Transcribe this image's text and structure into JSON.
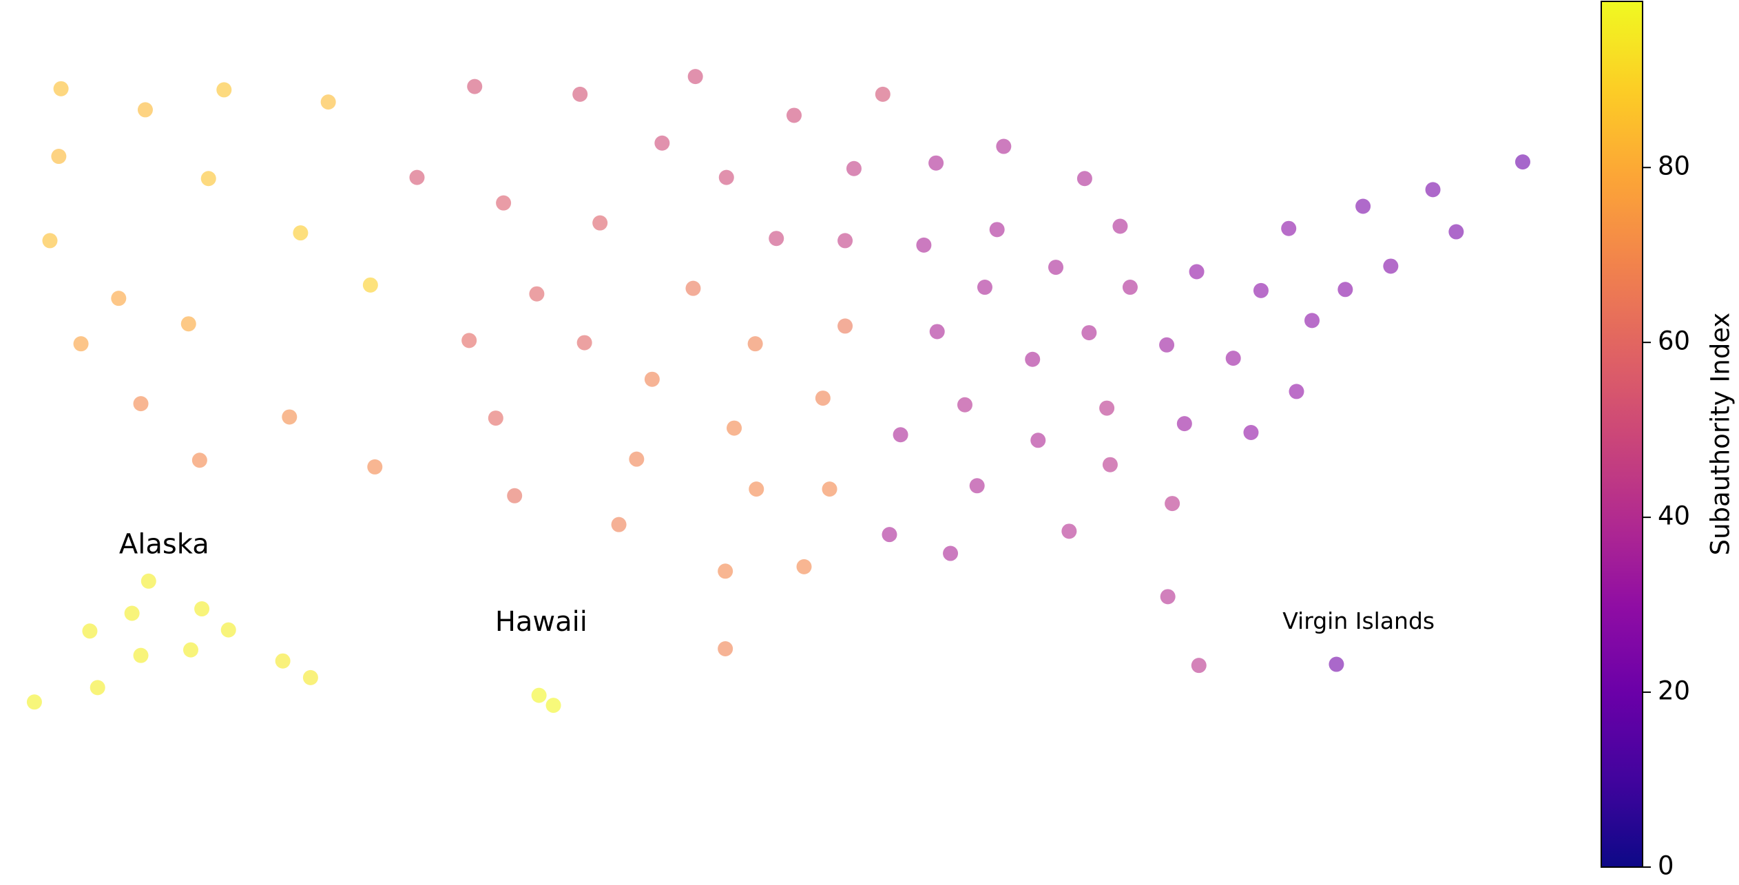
{
  "chart_data": {
    "type": "scatter",
    "colormap": "plasma",
    "colorbar_label": "Subauthority Index",
    "clim": [
      0,
      99
    ],
    "cticks": [
      0,
      20,
      40,
      60,
      80
    ],
    "xlim": [
      0,
      1568
    ],
    "ylim": [
      798,
      0
    ],
    "annotations": [
      {
        "text": "Alaska",
        "x": 148,
        "y": 492
      },
      {
        "text": "Hawaii",
        "x": 488,
        "y": 562
      },
      {
        "text": "Virgin Islands",
        "x": 1225,
        "y": 561
      }
    ],
    "x": [
      55,
      131,
      202,
      296,
      53,
      188,
      45,
      271,
      334,
      107,
      170,
      73,
      127,
      261,
      180,
      338,
      428,
      523,
      376,
      454,
      541,
      484,
      423,
      527,
      447,
      464,
      627,
      716,
      796,
      597,
      655,
      770,
      700,
      762,
      625,
      681,
      762,
      588,
      742,
      662,
      574,
      682,
      748,
      558,
      654,
      725,
      654,
      844,
      905,
      978,
      833,
      899,
      1010,
      952,
      888,
      1019,
      845,
      982,
      931,
      870,
      812,
      936,
      998,
      1001,
      881,
      1057,
      964,
      802,
      857,
      1053,
      1081,
      1079,
      1052,
      1137,
      1162,
      1112,
      1183,
      1213,
      1229,
      1254,
      1292,
      1313,
      1373,
      1169,
      1068,
      1128,
      134,
      81,
      119,
      182,
      206,
      127,
      172,
      88,
      31,
      255,
      280,
      486,
      499,
      1205
    ],
    "y": [
      80,
      99,
      81,
      92,
      141,
      161,
      217,
      210,
      257,
      269,
      292,
      310,
      364,
      376,
      415,
      421,
      78,
      85,
      160,
      183,
      201,
      265,
      307,
      309,
      377,
      447,
      69,
      104,
      85,
      129,
      160,
      152,
      215,
      217,
      260,
      310,
      294,
      342,
      359,
      386,
      414,
      441,
      441,
      473,
      515,
      511,
      585,
      147,
      132,
      161,
      221,
      207,
      204,
      241,
      259,
      259,
      299,
      300,
      324,
      365,
      392,
      397,
      368,
      419,
      438,
      454,
      479,
      482,
      499,
      538,
      600,
      245,
      311,
      262,
      206,
      323,
      289,
      261,
      186,
      240,
      171,
      209,
      146,
      353,
      382,
      390,
      524,
      569,
      553,
      549,
      568,
      591,
      586,
      620,
      633,
      596,
      611,
      627,
      636,
      599
    ],
    "values": [
      85,
      83,
      86,
      84,
      83,
      86,
      85,
      88,
      89,
      78,
      79,
      77,
      70,
      71,
      70,
      70,
      52,
      52,
      53,
      56,
      57,
      58,
      60,
      59,
      60,
      62,
      50,
      50,
      52,
      50,
      50,
      45,
      48,
      45,
      65,
      68,
      65,
      68,
      68,
      70,
      68,
      70,
      70,
      67,
      70,
      70,
      68,
      38,
      38,
      38,
      37,
      37,
      38,
      37,
      37,
      38,
      37,
      38,
      37,
      40,
      37,
      38,
      42,
      42,
      38,
      42,
      40,
      37,
      37,
      40,
      42,
      30,
      33,
      28,
      28,
      32,
      28,
      27,
      24,
      26,
      23,
      23,
      20,
      30,
      32,
      30,
      96,
      96,
      96,
      96,
      96,
      96,
      96,
      96,
      97,
      95,
      95,
      98,
      98,
      22
    ]
  }
}
